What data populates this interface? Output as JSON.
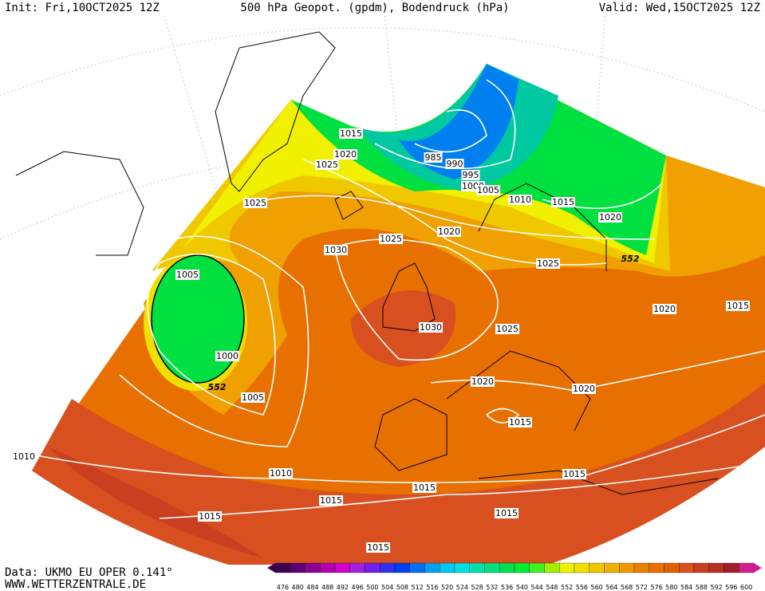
{
  "header": {
    "init": "Init: Fri,10OCT2025 12Z",
    "title": "500 hPa Geopot. (gpdm), Bodendruck (hPa)",
    "valid": "Valid: Wed,15OCT2025 12Z"
  },
  "isobar_labels": [
    "1015",
    "1020",
    "1025",
    "985",
    "990",
    "995",
    "1000",
    "1005",
    "1010",
    "1015",
    "1020",
    "552",
    "1025",
    "1025",
    "1020",
    "1030",
    "1025",
    "1005",
    "1000",
    "552",
    "1005",
    "1030",
    "1025",
    "1020",
    "1015",
    "1020",
    "1020",
    "1015",
    "1010",
    "1010",
    "1015",
    "1015",
    "1015",
    "1015",
    "1015",
    "1015"
  ],
  "colorbar": {
    "labels": [
      476,
      480,
      484,
      488,
      492,
      496,
      500,
      504,
      508,
      512,
      516,
      520,
      524,
      528,
      532,
      536,
      540,
      544,
      548,
      552,
      556,
      560,
      564,
      568,
      572,
      576,
      580,
      584,
      588,
      592,
      596,
      600
    ],
    "colors": [
      "#3c0050",
      "#600070",
      "#8a0090",
      "#b000b0",
      "#d000d0",
      "#a020e0",
      "#7020f0",
      "#3030f0",
      "#0040f0",
      "#0070f0",
      "#00a0f0",
      "#00c8f0",
      "#00e0e0",
      "#00e0b0",
      "#00e080",
      "#00e050",
      "#00f030",
      "#40f020",
      "#a0f000",
      "#f0f000",
      "#f0e000",
      "#f0c800",
      "#f0b000",
      "#f09800",
      "#e88000",
      "#e87000",
      "#e06000",
      "#d85020",
      "#c84020",
      "#b83020",
      "#a02030",
      "#d02090"
    ]
  },
  "footer": {
    "data": "Data: UKMO EU OPER 0.141°",
    "url": "WWW.WETTERZENTRALE.DE"
  }
}
